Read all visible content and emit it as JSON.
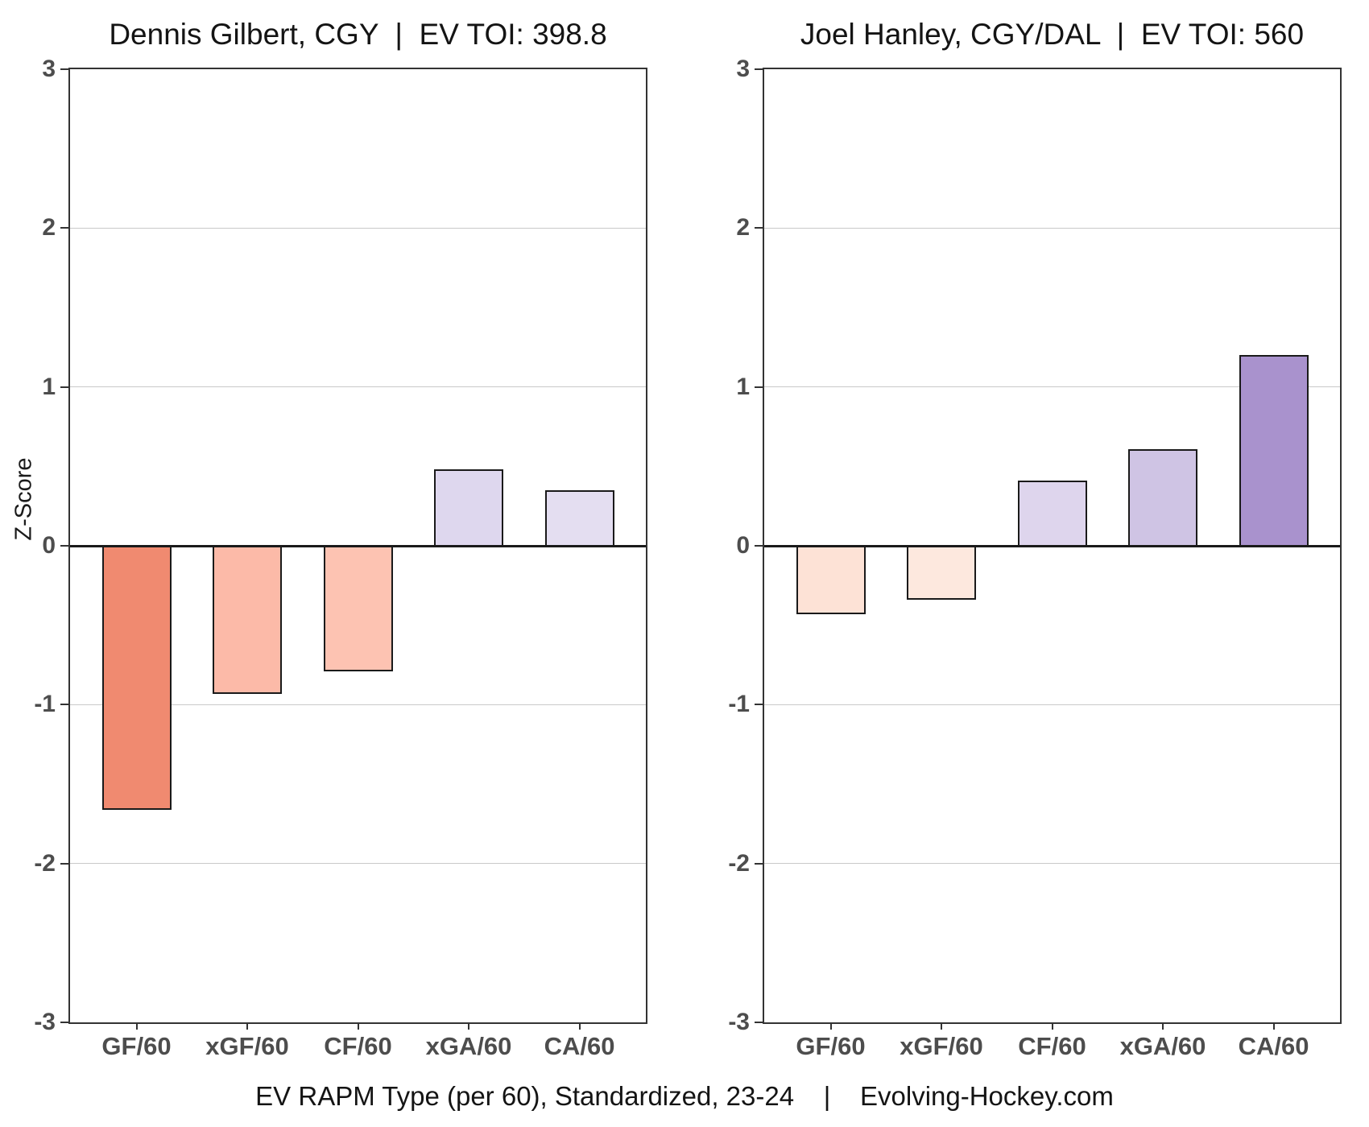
{
  "page": {
    "caption": "EV RAPM Type (per 60), Standardized, 23-24    |    Evolving-Hockey.com"
  },
  "style": {
    "background": "#ffffff",
    "panel_border": "#333333",
    "gridline_color": "#c9c9c9",
    "zero_line_color": "#1a1a1a",
    "bar_outline_color": "#1a1a1a",
    "tick_label_color": "#4d4d4d",
    "title_color": "#141414"
  },
  "chart_data": [
    {
      "type": "bar",
      "title": "Dennis Gilbert, CGY  |  EV TOI: 398.8",
      "player": "Dennis Gilbert",
      "team": "CGY",
      "ev_toi": "398.8",
      "categories": [
        "GF/60",
        "xGF/60",
        "CF/60",
        "xGA/60",
        "CA/60"
      ],
      "values": [
        -1.66,
        -0.93,
        -0.79,
        0.48,
        0.35
      ],
      "bar_colors": [
        "#f08a70",
        "#fcbaa8",
        "#fdc3b2",
        "#ded7ee",
        "#e4def1"
      ],
      "ylabel": "Z-Score",
      "xlabel": "",
      "ylim": [
        -3,
        3
      ],
      "yticks": [
        3,
        2,
        1,
        0,
        -1,
        -2,
        -3
      ],
      "grid": true,
      "legend": "none"
    },
    {
      "type": "bar",
      "title": "Joel Hanley, CGY/DAL  |  EV TOI: 560",
      "player": "Joel Hanley",
      "team": "CGY/DAL",
      "ev_toi": "560",
      "categories": [
        "GF/60",
        "xGF/60",
        "CF/60",
        "xGA/60",
        "CA/60"
      ],
      "values": [
        -0.43,
        -0.34,
        0.41,
        0.61,
        1.2
      ],
      "bar_colors": [
        "#fde2d6",
        "#fde8de",
        "#ded5ed",
        "#cfc4e4",
        "#a992cd"
      ],
      "ylabel": "Z-Score",
      "xlabel": "",
      "ylim": [
        -3,
        3
      ],
      "yticks": [
        3,
        2,
        1,
        0,
        -1,
        -2,
        -3
      ],
      "grid": true,
      "legend": "none"
    }
  ]
}
